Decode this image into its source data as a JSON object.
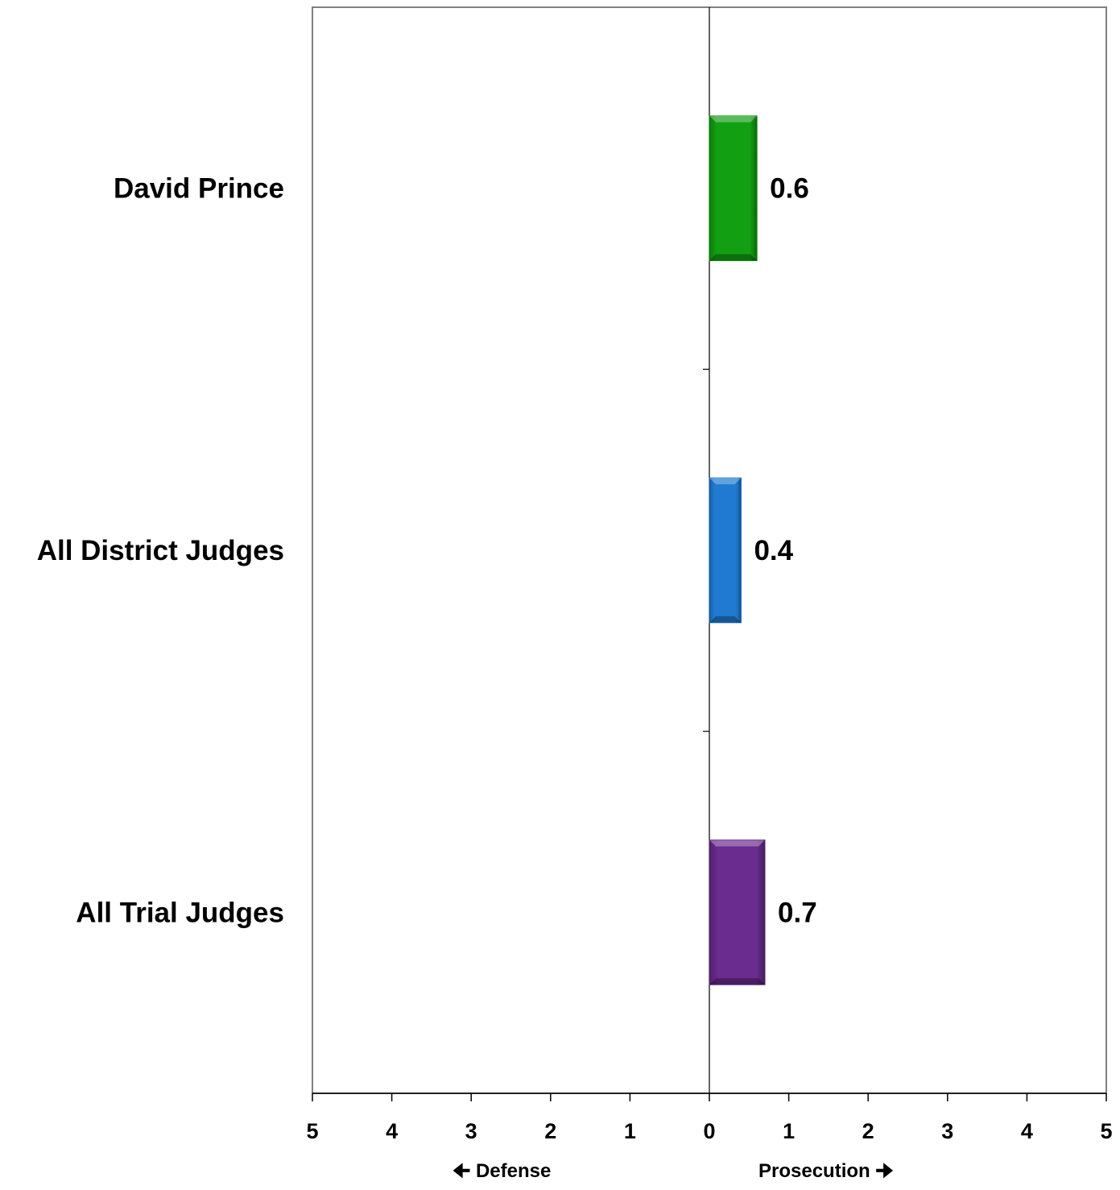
{
  "chart_data": {
    "type": "bar",
    "orientation": "horizontal",
    "categories": [
      "David Prince",
      "All District Judges",
      "All Trial Judges"
    ],
    "values": [
      0.6,
      0.4,
      0.7
    ],
    "value_labels": [
      "0.6",
      "0.4",
      "0.7"
    ],
    "colors": [
      "#12a012",
      "#1f7ad0",
      "#6a2c8e"
    ],
    "xlim": [
      -5,
      5
    ],
    "x_ticks": [
      -5,
      -4,
      -3,
      -2,
      -1,
      0,
      1,
      2,
      3,
      4,
      5
    ],
    "x_tick_labels": [
      "5",
      "4",
      "3",
      "2",
      "1",
      "0",
      "1",
      "2",
      "3",
      "4",
      "5"
    ],
    "axis_titles": {
      "defense": "Defense",
      "prosecution": "Prosecution"
    },
    "grid": false,
    "legend": "none"
  }
}
